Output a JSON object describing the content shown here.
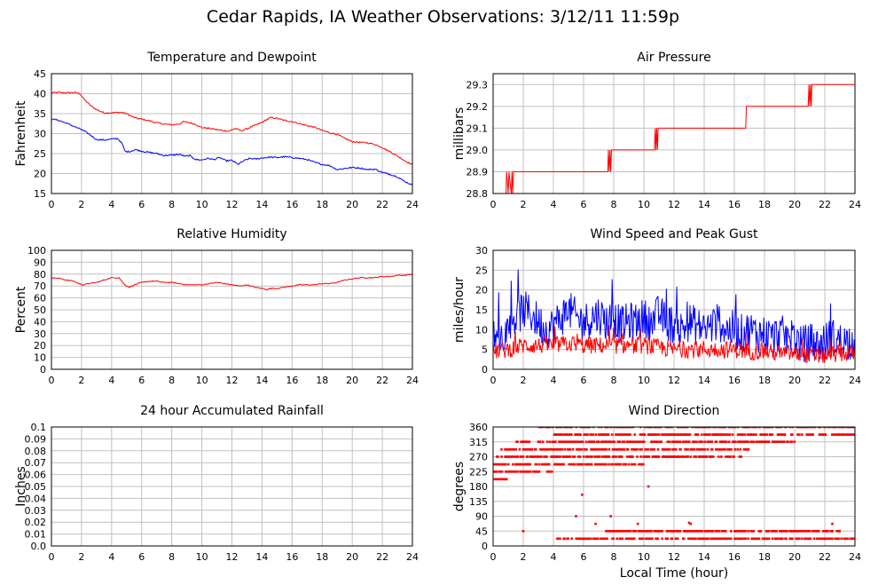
{
  "page": {
    "title": "Cedar Rapids, IA Weather Observations: 3/12/11 11:59p",
    "xlabel": "Local Time (hour)"
  },
  "colors": {
    "red": "#ff0000",
    "blue": "#0000ff",
    "grid": "#c0c0c0",
    "frame": "#000000"
  },
  "chart_data": [
    {
      "id": "temp",
      "type": "line",
      "title": "Temperature and Dewpoint",
      "xlabel": "",
      "ylabel": "Fahrenheit",
      "xlim": [
        0,
        24
      ],
      "ylim": [
        15,
        45
      ],
      "xticks": [
        0,
        2,
        4,
        6,
        8,
        10,
        12,
        14,
        16,
        18,
        20,
        22,
        24
      ],
      "yticks": [
        15,
        20,
        25,
        30,
        35,
        40,
        45
      ],
      "ytick_labels": [
        "15",
        "20",
        "25",
        "30",
        "35",
        "40",
        "45"
      ],
      "series": [
        {
          "color": "#ff0000",
          "x": [
            0,
            0.5,
            1,
            1.5,
            1.9,
            2.2,
            2.6,
            3,
            3.5,
            4,
            4.5,
            4.8,
            5.1,
            5.5,
            6,
            6.5,
            7,
            7.5,
            8,
            8.5,
            8.8,
            9.2,
            9.6,
            10,
            10.5,
            11,
            11.4,
            11.8,
            12.2,
            12.6,
            13,
            13.5,
            14,
            14.3,
            14.6,
            15,
            15.5,
            16,
            16.5,
            17,
            17.5,
            18,
            18.5,
            19,
            19.5,
            20,
            20.5,
            21,
            21.5,
            22,
            22.5,
            23,
            23.5,
            24
          ],
          "y": [
            40.2,
            40.3,
            40.2,
            40.3,
            40,
            38.5,
            37,
            36,
            35.2,
            35.2,
            35.3,
            35.2,
            34.8,
            34,
            33.6,
            33.2,
            32.7,
            32.4,
            32.2,
            32.4,
            33,
            32.7,
            32.3,
            31.5,
            31.3,
            31,
            30.8,
            30.6,
            31.3,
            30.7,
            31.2,
            32,
            32.8,
            33.5,
            34,
            33.8,
            33.3,
            33,
            32.5,
            32,
            31.6,
            30.8,
            30.2,
            29.8,
            28.8,
            28,
            27.8,
            27.7,
            27.3,
            26.5,
            25.5,
            24.4,
            23.2,
            22.2
          ]
        },
        {
          "color": "#0000ff",
          "x": [
            0,
            0.5,
            1,
            1.5,
            2,
            2.5,
            3,
            3.5,
            4,
            4.4,
            4.7,
            4.9,
            5.2,
            5.6,
            6,
            6.5,
            7,
            7.5,
            8,
            8.5,
            8.9,
            9.2,
            9.6,
            10,
            10.4,
            10.8,
            11.2,
            11.6,
            12,
            12.4,
            12.8,
            13.2,
            13.6,
            14,
            14.5,
            15,
            15.5,
            16,
            16.5,
            17,
            17.5,
            18,
            18.5,
            19,
            19.5,
            20,
            20.5,
            21,
            21.5,
            22,
            22.5,
            23,
            23.5,
            24
          ],
          "y": [
            33.7,
            33.3,
            32.6,
            31.8,
            31,
            29.9,
            28.5,
            28.4,
            28.6,
            28.8,
            27.5,
            25.5,
            25.5,
            26,
            25.6,
            25.3,
            25,
            24.5,
            24.6,
            24.8,
            24.3,
            24.5,
            23.5,
            23.4,
            23.8,
            23.5,
            24,
            23.2,
            23.3,
            22.3,
            23.2,
            23.8,
            23.6,
            23.9,
            24.1,
            24,
            24.2,
            24,
            23.8,
            23.5,
            22.8,
            22.3,
            22,
            21,
            21.3,
            21.5,
            21.4,
            21,
            21.1,
            20.3,
            19.8,
            19.2,
            18,
            17.1
          ]
        }
      ]
    },
    {
      "id": "pressure",
      "type": "line",
      "title": "Air Pressure",
      "xlabel": "",
      "ylabel": "millibars",
      "xlim": [
        0,
        24
      ],
      "ylim": [
        28.8,
        29.35
      ],
      "xticks": [
        0,
        2,
        4,
        6,
        8,
        10,
        12,
        14,
        16,
        18,
        20,
        22,
        24
      ],
      "yticks": [
        28.8,
        28.9,
        29.0,
        29.1,
        29.2,
        29.3
      ],
      "ytick_labels": [
        "28.8",
        "28.9",
        "29.0",
        "29.1",
        "29.2",
        "29.3"
      ],
      "series": [
        {
          "color": "#ff0000",
          "x": [
            0,
            0.85,
            0.9,
            1.0,
            1.05,
            1.2,
            1.25,
            1.3,
            1.35,
            7.6,
            7.65,
            7.7,
            7.75,
            7.8,
            7.85,
            10.7,
            10.75,
            10.8,
            10.85,
            10.9,
            10.95,
            16.75,
            16.8,
            20.9,
            20.95,
            21.0,
            21.05,
            21.1,
            21.15,
            24
          ],
          "y": [
            28.8,
            28.8,
            28.9,
            28.8,
            28.9,
            28.8,
            28.9,
            28.8,
            28.9,
            28.9,
            29.0,
            28.9,
            29.0,
            28.9,
            29.0,
            29.0,
            29.1,
            29.0,
            29.1,
            29.0,
            29.1,
            29.1,
            29.2,
            29.2,
            29.3,
            29.2,
            29.3,
            29.2,
            29.3,
            29.3
          ]
        }
      ]
    },
    {
      "id": "humidity",
      "type": "line",
      "title": "Relative Humidity",
      "xlabel": "",
      "ylabel": "Percent",
      "xlim": [
        0,
        24
      ],
      "ylim": [
        0,
        100
      ],
      "xticks": [
        0,
        2,
        4,
        6,
        8,
        10,
        12,
        14,
        16,
        18,
        20,
        22,
        24
      ],
      "yticks": [
        0,
        10,
        20,
        30,
        40,
        50,
        60,
        70,
        80,
        90,
        100
      ],
      "ytick_labels": [
        "0",
        "10",
        "20",
        "30",
        "40",
        "50",
        "60",
        "70",
        "80",
        "90",
        "100"
      ],
      "series": [
        {
          "color": "#ff0000",
          "x": [
            0,
            0.5,
            1,
            1.5,
            1.8,
            2.1,
            2.5,
            3,
            3.5,
            4,
            4.5,
            4.8,
            5,
            5.2,
            5.5,
            6,
            6.5,
            7,
            7.5,
            8,
            8.5,
            9,
            9.5,
            10,
            10.5,
            11,
            11.5,
            12,
            12.5,
            13,
            13.5,
            14,
            14.3,
            14.6,
            15,
            15.5,
            16,
            16.5,
            17,
            17.5,
            18,
            18.5,
            19,
            19.5,
            20,
            20.5,
            21,
            21.5,
            22,
            22.5,
            23,
            23.5,
            24
          ],
          "y": [
            77,
            76.5,
            75,
            74,
            72,
            71,
            72,
            73,
            75,
            77,
            77,
            72,
            70,
            69,
            71,
            73,
            74,
            74,
            73,
            73,
            72,
            71,
            71,
            71,
            72,
            73,
            72,
            71,
            70,
            71,
            69,
            68,
            67,
            68,
            68,
            69,
            70,
            71,
            71,
            71,
            72,
            72,
            73,
            75,
            76,
            77,
            77,
            77,
            78,
            78,
            79,
            79,
            80
          ]
        }
      ]
    },
    {
      "id": "wind",
      "type": "line",
      "title": "Wind Speed and Peak Gust",
      "xlabel": "",
      "ylabel": "miles/hour",
      "xlim": [
        0,
        24
      ],
      "ylim": [
        0,
        30
      ],
      "xticks": [
        0,
        2,
        4,
        6,
        8,
        10,
        12,
        14,
        16,
        18,
        20,
        22,
        24
      ],
      "yticks": [
        0,
        5,
        10,
        15,
        20,
        25,
        30
      ],
      "ytick_labels": [
        "0",
        "5",
        "10",
        "15",
        "20",
        "25",
        "30"
      ],
      "series": [
        {
          "name_hidden": "gust",
          "color": "#0000ff",
          "x": [
            0,
            0.5,
            1,
            1.5,
            2,
            2.5,
            3,
            3.5,
            4,
            4.5,
            5,
            5.5,
            6,
            6.5,
            7,
            7.5,
            8,
            8.5,
            9,
            9.5,
            10,
            10.5,
            11,
            11.5,
            12,
            12.5,
            13,
            13.5,
            14,
            14.5,
            15,
            15.5,
            16,
            16.5,
            17,
            17.5,
            18,
            18.5,
            19,
            19.5,
            20,
            20.5,
            21,
            21.5,
            22,
            22.5,
            23,
            23.5,
            24
          ],
          "y": [
            9,
            8,
            10,
            13,
            15,
            14,
            12,
            10,
            11,
            13,
            15,
            13,
            12,
            13,
            14,
            12,
            13,
            11,
            12,
            12,
            13,
            12,
            14,
            12,
            11,
            10,
            12,
            11,
            10,
            11,
            12,
            10,
            10,
            9,
            10,
            9,
            9,
            8,
            9,
            8,
            8,
            6,
            7,
            6,
            7,
            8,
            7,
            7,
            8
          ],
          "amp": 5
        },
        {
          "name_hidden": "speed",
          "color": "#ff0000",
          "x": [
            0,
            1,
            2,
            3,
            4,
            5,
            6,
            7,
            8,
            9,
            10,
            11,
            12,
            13,
            14,
            15,
            16,
            17,
            18,
            19,
            20,
            21,
            22,
            23,
            24
          ],
          "y": [
            4.5,
            5,
            6,
            6,
            6,
            6.5,
            6,
            6,
            6,
            6,
            6,
            5.5,
            5,
            5,
            5,
            5,
            5,
            4.5,
            4.5,
            4,
            4,
            3.5,
            3.5,
            4,
            4
          ],
          "amp": 2.2
        }
      ]
    },
    {
      "id": "rain",
      "type": "line",
      "title": "24 hour Accumulated Rainfall",
      "xlabel": "",
      "ylabel": "Inches",
      "xlim": [
        0,
        24
      ],
      "ylim": [
        0,
        0.1
      ],
      "xticks": [
        0,
        2,
        4,
        6,
        8,
        10,
        12,
        14,
        16,
        18,
        20,
        22,
        24
      ],
      "yticks": [
        0,
        0.01,
        0.02,
        0.03,
        0.04,
        0.05,
        0.06,
        0.07,
        0.08,
        0.09,
        0.1
      ],
      "ytick_labels": [
        "0.0",
        "0.01",
        "0.02",
        "0.03",
        "0.04",
        "0.05",
        "0.06",
        "0.07",
        "0.08",
        "0.09",
        "0.1"
      ],
      "series": [
        {
          "color": "#ff0000",
          "x": [
            0,
            24
          ],
          "y": [
            0,
            0
          ]
        }
      ]
    },
    {
      "id": "direction",
      "type": "scatter",
      "title": "Wind Direction",
      "xlabel": "Local Time (hour)",
      "ylabel": "degrees",
      "xlim": [
        0,
        24
      ],
      "ylim": [
        0,
        360
      ],
      "xticks": [
        0,
        2,
        4,
        6,
        8,
        10,
        12,
        14,
        16,
        18,
        20,
        22,
        24
      ],
      "yticks": [
        0,
        45,
        90,
        135,
        180,
        225,
        270,
        315,
        360
      ],
      "ytick_labels": [
        "0",
        "45",
        "90",
        "135",
        "180",
        "225",
        "270",
        "315",
        "360"
      ],
      "bands": [
        {
          "y": 360,
          "x0": 3.0,
          "x1": 24
        },
        {
          "y": 337,
          "x0": 4.0,
          "x1": 24
        },
        {
          "y": 315,
          "x0": 1.5,
          "x1": 20
        },
        {
          "y": 292,
          "x0": 0.5,
          "x1": 17
        },
        {
          "y": 270,
          "x0": 0.2,
          "x1": 16.5
        },
        {
          "y": 247,
          "x0": 0,
          "x1": 10
        },
        {
          "y": 225,
          "x0": 0,
          "x1": 4
        },
        {
          "y": 202,
          "x0": 0,
          "x1": 1
        },
        {
          "y": 22,
          "x0": 4.2,
          "x1": 24
        },
        {
          "y": 45,
          "x0": 7.5,
          "x1": 23
        }
      ],
      "points": [
        {
          "x": 5.9,
          "y": 155
        },
        {
          "x": 10.3,
          "y": 180
        },
        {
          "x": 5.5,
          "y": 90
        },
        {
          "x": 7.8,
          "y": 90
        },
        {
          "x": 9.6,
          "y": 67
        },
        {
          "x": 13.1,
          "y": 67
        },
        {
          "x": 22.5,
          "y": 67
        },
        {
          "x": 6.8,
          "y": 67
        },
        {
          "x": 2.0,
          "y": 45
        },
        {
          "x": 18.8,
          "y": 45
        },
        {
          "x": 13.0,
          "y": 70
        }
      ]
    }
  ]
}
